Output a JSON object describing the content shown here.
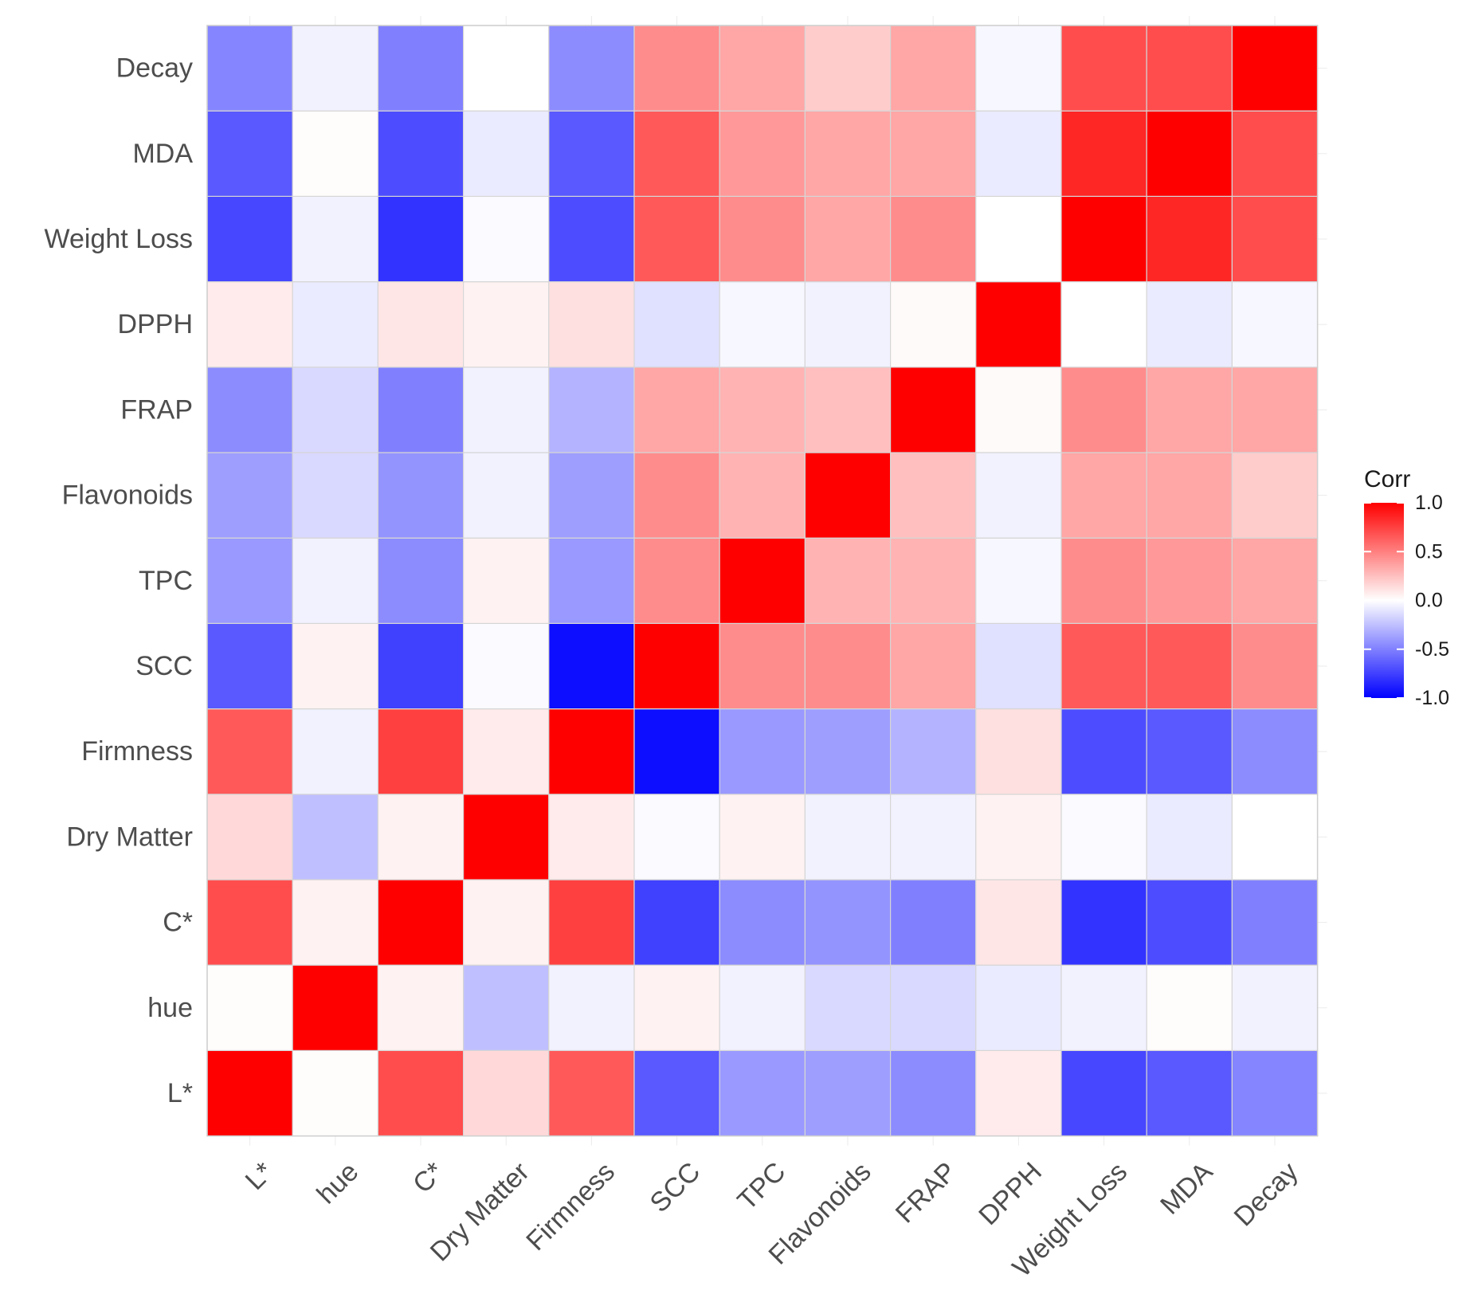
{
  "chart_data": {
    "type": "heatmap",
    "title": "",
    "variables": [
      "L*",
      "hue",
      "C*",
      "Dry Matter",
      "Firmness",
      "SCC",
      "TPC",
      "Flavonoids",
      "FRAP",
      "DPPH",
      "Weight Loss",
      "MDA",
      "Decay"
    ],
    "x_categories": [
      "L*",
      "hue",
      "C*",
      "Dry Matter",
      "Firmness",
      "SCC",
      "TPC",
      "Flavonoids",
      "FRAP",
      "DPPH",
      "Weight Loss",
      "MDA",
      "Decay"
    ],
    "y_categories_bottom_to_top": [
      "L*",
      "hue",
      "C*",
      "Dry Matter",
      "Firmness",
      "SCC",
      "TPC",
      "Flavonoids",
      "FRAP",
      "DPPH",
      "Weight Loss",
      "MDA",
      "Decay"
    ],
    "matrix": [
      [
        1.0,
        0.01,
        0.7,
        0.15,
        0.65,
        -0.65,
        -0.4,
        -0.38,
        -0.45,
        0.08,
        -0.72,
        -0.65,
        -0.48
      ],
      [
        0.01,
        1.0,
        0.05,
        -0.25,
        -0.05,
        0.05,
        -0.05,
        -0.15,
        -0.15,
        -0.08,
        -0.05,
        0.01,
        -0.05
      ],
      [
        0.7,
        0.05,
        1.0,
        0.05,
        0.75,
        -0.75,
        -0.45,
        -0.42,
        -0.5,
        0.1,
        -0.8,
        -0.7,
        -0.5
      ],
      [
        0.15,
        -0.25,
        0.05,
        1.0,
        0.08,
        -0.02,
        0.05,
        -0.05,
        -0.05,
        0.05,
        -0.02,
        -0.08,
        0.0
      ],
      [
        0.65,
        -0.05,
        0.75,
        0.08,
        1.0,
        -0.95,
        -0.4,
        -0.38,
        -0.3,
        0.12,
        -0.7,
        -0.65,
        -0.45
      ],
      [
        -0.65,
        0.05,
        -0.75,
        -0.02,
        -0.95,
        1.0,
        0.45,
        0.45,
        0.35,
        -0.12,
        0.65,
        0.65,
        0.45
      ],
      [
        -0.4,
        -0.05,
        -0.45,
        0.05,
        -0.4,
        0.45,
        1.0,
        0.3,
        0.3,
        -0.03,
        0.45,
        0.4,
        0.35
      ],
      [
        -0.38,
        -0.15,
        -0.42,
        -0.05,
        -0.38,
        0.45,
        0.3,
        1.0,
        0.25,
        -0.05,
        0.35,
        0.35,
        0.2
      ],
      [
        -0.45,
        -0.15,
        -0.5,
        -0.05,
        -0.3,
        0.35,
        0.3,
        0.25,
        1.0,
        0.02,
        0.45,
        0.35,
        0.35
      ],
      [
        0.08,
        -0.08,
        0.1,
        0.05,
        0.12,
        -0.12,
        -0.03,
        -0.05,
        0.02,
        1.0,
        0.0,
        -0.08,
        -0.03
      ],
      [
        -0.72,
        -0.05,
        -0.8,
        -0.02,
        -0.7,
        0.65,
        0.45,
        0.35,
        0.45,
        0.0,
        1.0,
        0.85,
        0.7
      ],
      [
        -0.65,
        0.01,
        -0.7,
        -0.08,
        -0.65,
        0.65,
        0.4,
        0.35,
        0.35,
        -0.08,
        0.85,
        1.0,
        0.7
      ],
      [
        -0.48,
        -0.05,
        -0.5,
        0.0,
        -0.45,
        0.45,
        0.35,
        0.2,
        0.35,
        -0.03,
        0.7,
        0.7,
        1.0
      ]
    ],
    "color_scale": {
      "low": "#0000FF",
      "mid": "#FFFFFF",
      "high": "#FF0000",
      "limits": [
        -1.0,
        1.0
      ],
      "midpoint": 0.0
    },
    "grid_color": "#d6d6d6",
    "legend": {
      "title": "Corr",
      "position": "right",
      "ticks": [
        1.0,
        0.5,
        0.0,
        -0.5,
        -1.0
      ],
      "tick_labels": [
        "1.0",
        "0.5",
        "0.0",
        "-0.5",
        "-1.0"
      ]
    },
    "xlabel": "",
    "ylabel": ""
  }
}
